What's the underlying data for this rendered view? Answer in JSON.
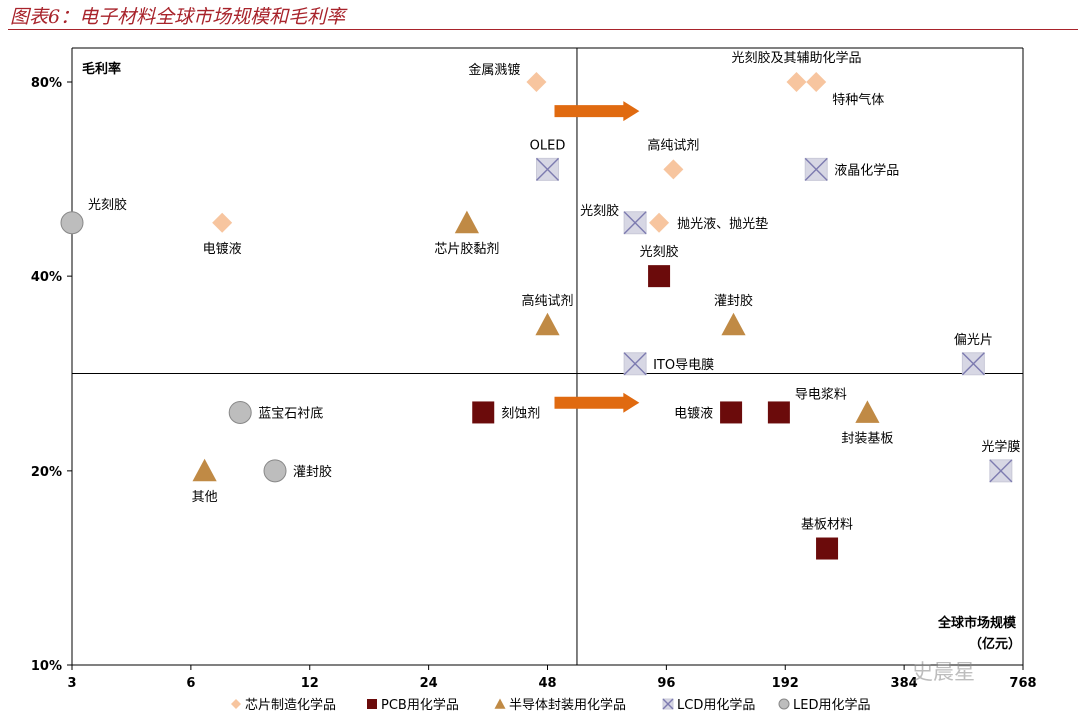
{
  "figure_title": "图表6：电子材料全球市场规模和毛利率",
  "watermark": "史晨星",
  "chart_data": {
    "type": "scatter",
    "title": "图表6：电子材料全球市场规模和毛利率",
    "xlabel": "全球市场规模",
    "xlabel_unit": "（亿元）",
    "ylabel": "毛利率",
    "x_scale": "log2",
    "xlim": [
      3,
      768
    ],
    "ylim": [
      10,
      85
    ],
    "x_ticks": [
      3,
      6,
      12,
      24,
      48,
      96,
      192,
      384,
      768
    ],
    "x_tick_labels": [
      "3",
      "6",
      "12",
      "24",
      "48",
      "96",
      "192",
      "384",
      "768"
    ],
    "y_ticks": [
      10,
      20,
      40,
      80
    ],
    "y_tick_labels": [
      "10%",
      "20%",
      "40%",
      "80%"
    ],
    "y_tick_positions": {
      "10": 0,
      "20": 0.333,
      "40": 0.667,
      "80": 1.0
    },
    "quadrant_divider": {
      "x": 57,
      "y": 30
    },
    "arrows": [
      {
        "from": [
          50,
          74
        ],
        "to": [
          82,
          74
        ],
        "color": "#e06a10"
      },
      {
        "from": [
          50,
          27
        ],
        "to": [
          82,
          27
        ],
        "color": "#e06a10"
      }
    ],
    "legend_position": "bottom",
    "series": [
      {
        "name": "芯片制造化学品",
        "marker": "diamond",
        "color": "#f7c59f",
        "points": [
          {
            "label": "金属溅镀",
            "x": 45,
            "y": 80,
            "label_side": "top-left"
          },
          {
            "label": "光刻胶及其辅助化学品",
            "x": 205,
            "y": 80,
            "label_side": "top"
          },
          {
            "label": "特种气体",
            "x": 230,
            "y": 80,
            "label_side": "bottom-right"
          },
          {
            "label": "高纯试剂",
            "x": 100,
            "y": 62,
            "label_side": "top"
          },
          {
            "label": "抛光液、抛光垫",
            "x": 92,
            "y": 51,
            "label_side": "right"
          },
          {
            "label": "电镀液",
            "x": 7.2,
            "y": 51,
            "label_side": "bottom"
          }
        ]
      },
      {
        "name": "PCB用化学品",
        "marker": "square",
        "color": "#6b0b0b",
        "points": [
          {
            "label": "光刻胶",
            "x": 92,
            "y": 40,
            "label_side": "top"
          },
          {
            "label": "刻蚀剂",
            "x": 33,
            "y": 26,
            "label_side": "right"
          },
          {
            "label": "电镀液",
            "x": 140,
            "y": 26,
            "label_side": "left"
          },
          {
            "label": "导电浆料",
            "x": 185,
            "y": 26,
            "label_side": "top-right"
          },
          {
            "label": "基板材料",
            "x": 245,
            "y": 16,
            "label_side": "top"
          }
        ]
      },
      {
        "name": "半导体封装用化学品",
        "marker": "triangle",
        "color": "#c08a45",
        "points": [
          {
            "label": "芯片胶黏剂",
            "x": 30,
            "y": 51,
            "label_side": "bottom"
          },
          {
            "label": "高纯试剂",
            "x": 48,
            "y": 35,
            "label_side": "top"
          },
          {
            "label": "灌封胶",
            "x": 142,
            "y": 35,
            "label_side": "top"
          },
          {
            "label": "封装基板",
            "x": 310,
            "y": 26,
            "label_side": "bottom"
          },
          {
            "label": "其他",
            "x": 6.5,
            "y": 20,
            "label_side": "bottom"
          }
        ]
      },
      {
        "name": "LCD用化学品",
        "marker": "x-square",
        "color": "#d7d7e4",
        "points": [
          {
            "label": "OLED",
            "x": 48,
            "y": 62,
            "label_side": "top"
          },
          {
            "label": "液晶化学品",
            "x": 230,
            "y": 62,
            "label_side": "right"
          },
          {
            "label": "光刻胶",
            "x": 80,
            "y": 51,
            "label_side": "top-left"
          },
          {
            "label": "ITO导电膜",
            "x": 80,
            "y": 31,
            "label_side": "right"
          },
          {
            "label": "偏光片",
            "x": 575,
            "y": 31,
            "label_side": "top"
          },
          {
            "label": "光学膜",
            "x": 675,
            "y": 20,
            "label_side": "top"
          }
        ]
      },
      {
        "name": "LED用化学品",
        "marker": "circle",
        "color": "#bdbdbd",
        "points": [
          {
            "label": "光刻胶",
            "x": 3,
            "y": 51,
            "label_side": "top-right"
          },
          {
            "label": "蓝宝石衬底",
            "x": 8,
            "y": 26,
            "label_side": "right"
          },
          {
            "label": "灌封胶",
            "x": 9.8,
            "y": 20,
            "label_side": "right"
          }
        ]
      }
    ]
  }
}
